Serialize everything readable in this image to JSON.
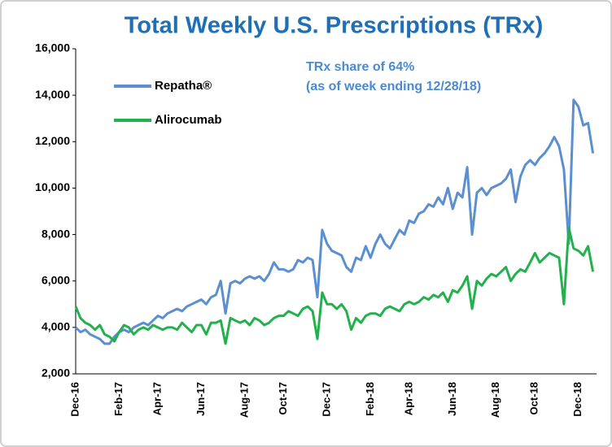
{
  "chart_data": {
    "type": "line",
    "title": "Total Weekly U.S. Prescriptions (TRx)",
    "annotation": [
      "TRx share of 64%",
      "(as of week ending 12/28/18)"
    ],
    "categories": [
      "Dec-16",
      null,
      null,
      null,
      null,
      null,
      null,
      null,
      null,
      "Feb-17",
      null,
      null,
      null,
      null,
      null,
      null,
      null,
      "Apr-17",
      null,
      null,
      null,
      null,
      null,
      null,
      null,
      null,
      "Jun-17",
      null,
      null,
      null,
      null,
      null,
      null,
      null,
      null,
      "Aug-17",
      null,
      null,
      null,
      null,
      null,
      null,
      null,
      "Oct-17",
      null,
      null,
      null,
      null,
      null,
      null,
      null,
      null,
      "Dec-17",
      null,
      null,
      null,
      null,
      null,
      null,
      null,
      null,
      "Feb-18",
      null,
      null,
      null,
      null,
      null,
      null,
      null,
      "Apr-18",
      null,
      null,
      null,
      null,
      null,
      null,
      null,
      null,
      "Jun-18",
      null,
      null,
      null,
      null,
      null,
      null,
      null,
      null,
      "Aug-18",
      null,
      null,
      null,
      null,
      null,
      null,
      null,
      "Oct-18",
      null,
      null,
      null,
      null,
      null,
      null,
      null,
      null,
      "Dec-18",
      null,
      null,
      null
    ],
    "series": [
      {
        "name": "Repatha®",
        "color": "#5b8fd0",
        "values": [
          4000,
          3800,
          3900,
          3700,
          3600,
          3500,
          3300,
          3300,
          3600,
          3800,
          3900,
          3800,
          4000,
          4100,
          4200,
          4100,
          4300,
          4500,
          4400,
          4600,
          4700,
          4800,
          4700,
          4900,
          5000,
          5100,
          5200,
          5000,
          5300,
          5400,
          6000,
          4600,
          5900,
          6000,
          5900,
          6100,
          6200,
          6100,
          6200,
          6000,
          6300,
          6800,
          6500,
          6500,
          6400,
          6500,
          6900,
          6800,
          7000,
          6900,
          5300,
          8200,
          7600,
          7300,
          7200,
          7100,
          6600,
          6400,
          7000,
          6900,
          7500,
          7000,
          7600,
          8000,
          7600,
          7400,
          7800,
          8200,
          8000,
          8600,
          8500,
          8900,
          9000,
          9300,
          9200,
          9600,
          9300,
          10000,
          9100,
          9800,
          9600,
          10900,
          8000,
          9800,
          10000,
          9700,
          10000,
          10100,
          10200,
          10400,
          10800,
          9400,
          10500,
          11000,
          11200,
          11000,
          11300,
          11500,
          11800,
          12200,
          11800,
          10800,
          7600,
          13800,
          13500,
          12700,
          12800,
          11500
        ]
      },
      {
        "name": "Alirocumab",
        "color": "#22b14c",
        "values": [
          4900,
          4400,
          4200,
          4100,
          3900,
          4100,
          3700,
          3600,
          3400,
          3800,
          4100,
          4000,
          3700,
          3900,
          4000,
          3900,
          4100,
          4000,
          3900,
          4000,
          4000,
          3900,
          4200,
          4000,
          3800,
          4100,
          4100,
          3700,
          4200,
          4200,
          4300,
          3300,
          4400,
          4300,
          4200,
          4300,
          4100,
          4400,
          4300,
          4100,
          4200,
          4400,
          4500,
          4500,
          4700,
          4600,
          4500,
          4800,
          4900,
          4700,
          3500,
          5500,
          5000,
          5000,
          4800,
          5000,
          4700,
          3900,
          4400,
          4200,
          4500,
          4600,
          4600,
          4500,
          4800,
          4900,
          4800,
          4700,
          5000,
          5100,
          5000,
          5100,
          5300,
          5200,
          5400,
          5300,
          5500,
          5100,
          5600,
          5500,
          5800,
          6200,
          4800,
          6000,
          5800,
          6100,
          6300,
          6200,
          6400,
          6600,
          6000,
          6300,
          6500,
          6400,
          6800,
          7200,
          6800,
          7000,
          7200,
          7100,
          7000,
          5000,
          8300,
          7400,
          7300,
          7100,
          7500,
          6400
        ]
      }
    ],
    "ylim": [
      2000,
      16000
    ],
    "yticks": [
      {
        "value": 2000,
        "label": "2,000"
      },
      {
        "value": 4000,
        "label": "4,000"
      },
      {
        "value": 6000,
        "label": "6,000"
      },
      {
        "value": 8000,
        "label": "8,000"
      },
      {
        "value": 10000,
        "label": "10,000"
      },
      {
        "value": 12000,
        "label": "12,000"
      },
      {
        "value": 14000,
        "label": "14,000"
      },
      {
        "value": 16000,
        "label": "16,000"
      }
    ],
    "grid": false,
    "legend": "upper left"
  }
}
